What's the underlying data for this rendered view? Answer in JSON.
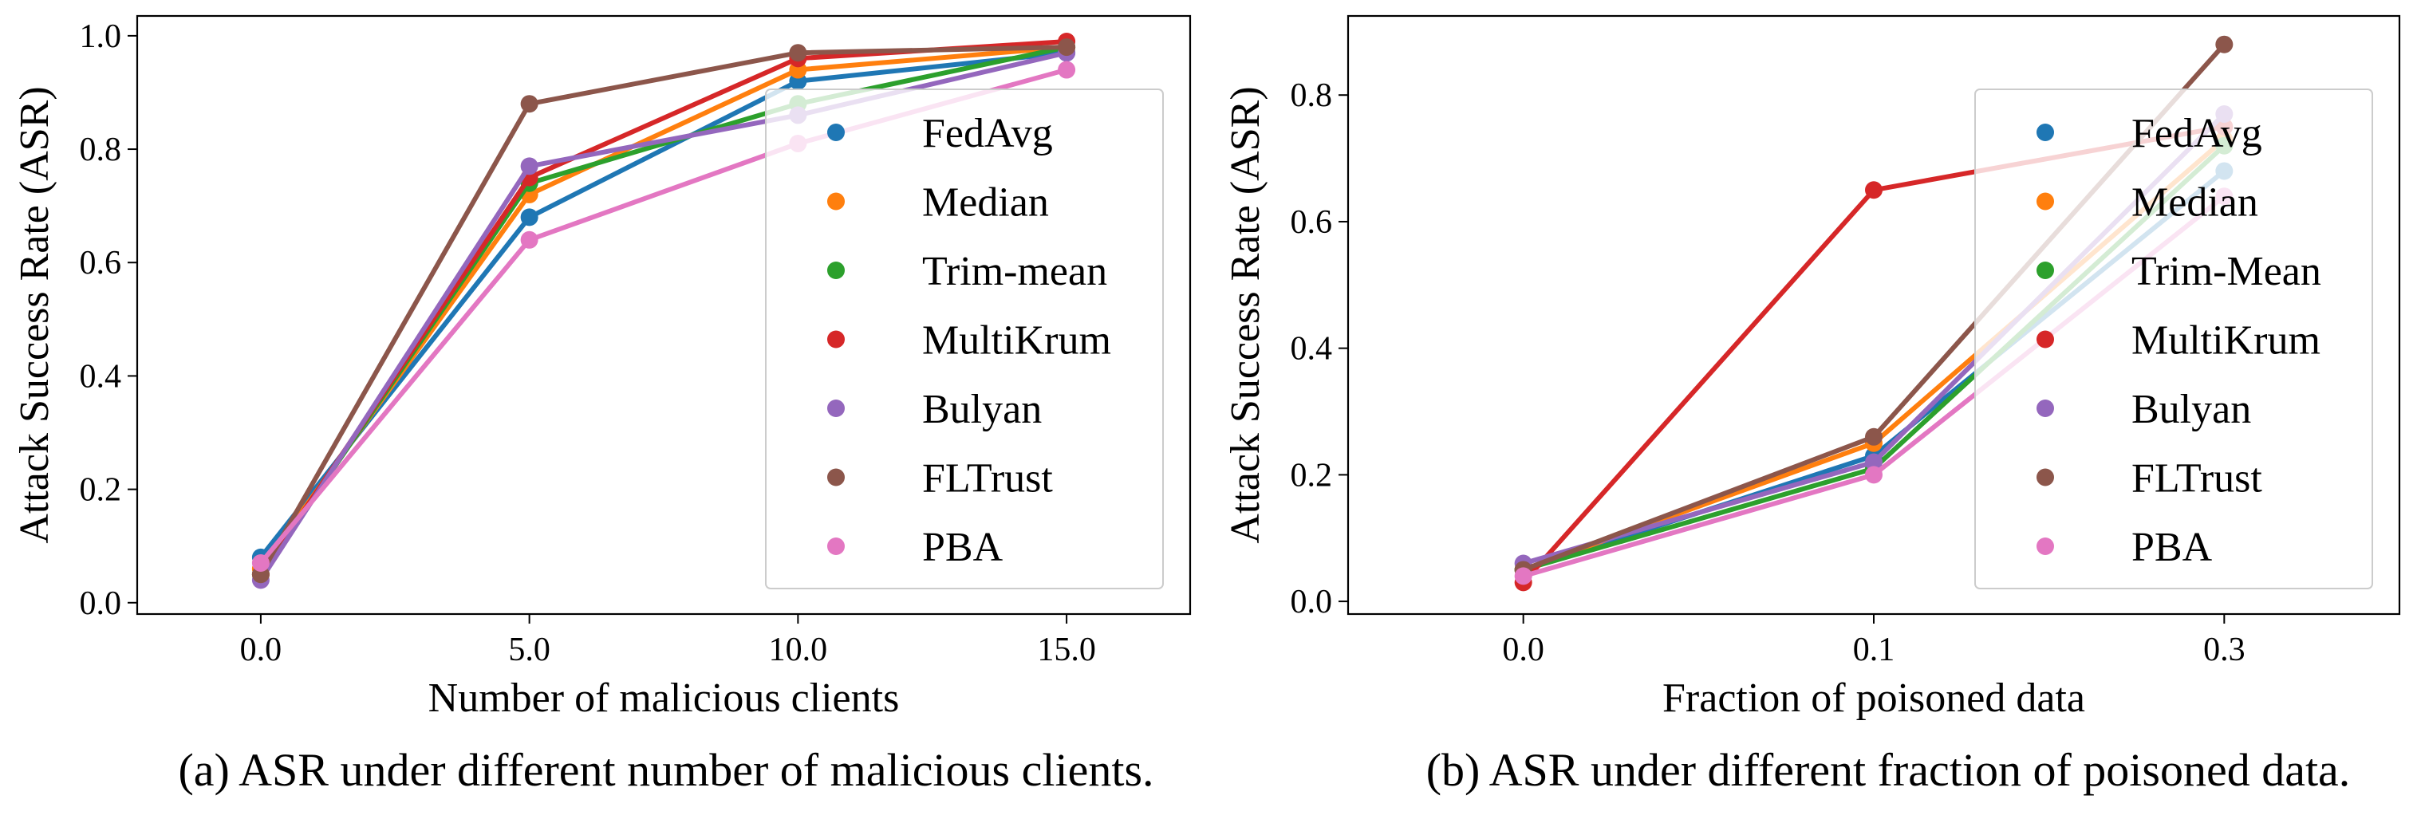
{
  "chart_data": [
    {
      "type": "line",
      "caption": "(a) ASR under different number of malicious clients.",
      "xlabel": "Number of malicious clients",
      "ylabel": "Attack Success Rate (ASR)",
      "x": [
        0.0,
        5.0,
        10.0,
        15.0
      ],
      "x_tick_labels": [
        "0.0",
        "5.0",
        "10.0",
        "15.0"
      ],
      "xlim": [
        -2.3,
        17.3
      ],
      "ylim": [
        -0.02,
        1.035
      ],
      "y_ticks": [
        0.0,
        0.2,
        0.4,
        0.6,
        0.8,
        1.0
      ],
      "y_tick_labels": [
        "0.0",
        "0.2",
        "0.4",
        "0.6",
        "0.8",
        "1.0"
      ],
      "grid": false,
      "legend_position": "right",
      "series": [
        {
          "name": "FedAvg",
          "color": "#1f77b4",
          "values": [
            0.08,
            0.68,
            0.92,
            0.97
          ]
        },
        {
          "name": "Median",
          "color": "#ff7f0e",
          "values": [
            0.06,
            0.72,
            0.94,
            0.98
          ]
        },
        {
          "name": "Trim-mean",
          "color": "#2ca02c",
          "values": [
            0.05,
            0.74,
            0.88,
            0.98
          ]
        },
        {
          "name": "MultiKrum",
          "color": "#d62728",
          "values": [
            0.05,
            0.75,
            0.96,
            0.99
          ]
        },
        {
          "name": "Bulyan",
          "color": "#9467bd",
          "values": [
            0.04,
            0.77,
            0.86,
            0.97
          ]
        },
        {
          "name": "FLTrust",
          "color": "#8c564b",
          "values": [
            0.05,
            0.88,
            0.97,
            0.98
          ]
        },
        {
          "name": "PBA",
          "color": "#e377c2",
          "values": [
            0.07,
            0.64,
            0.81,
            0.94
          ]
        }
      ]
    },
    {
      "type": "line",
      "caption": "(b) ASR under different fraction of poisoned data.",
      "xlabel": "Fraction of poisoned data",
      "ylabel": "Attack Success Rate (ASR)",
      "x": [
        "0.0",
        "0.1",
        "0.3"
      ],
      "x_tick_labels": [
        "0.0",
        "0.1",
        "0.3"
      ],
      "xlim": [
        -0.5,
        2.5
      ],
      "ylim": [
        -0.02,
        0.925
      ],
      "y_ticks": [
        0.0,
        0.2,
        0.4,
        0.6,
        0.8
      ],
      "y_tick_labels": [
        "0.0",
        "0.2",
        "0.4",
        "0.6",
        "0.8"
      ],
      "grid": false,
      "legend_position": "right",
      "series": [
        {
          "name": "FedAvg",
          "color": "#1f77b4",
          "values": [
            0.05,
            0.23,
            0.68
          ]
        },
        {
          "name": "Median",
          "color": "#ff7f0e",
          "values": [
            0.05,
            0.25,
            0.73
          ]
        },
        {
          "name": "Trim-Mean",
          "color": "#2ca02c",
          "values": [
            0.05,
            0.21,
            0.72
          ]
        },
        {
          "name": "MultiKrum",
          "color": "#d62728",
          "values": [
            0.03,
            0.65,
            0.75
          ]
        },
        {
          "name": "Bulyan",
          "color": "#9467bd",
          "values": [
            0.06,
            0.22,
            0.77
          ]
        },
        {
          "name": "FLTrust",
          "color": "#8c564b",
          "values": [
            0.05,
            0.26,
            0.88
          ]
        },
        {
          "name": "PBA",
          "color": "#e377c2",
          "values": [
            0.04,
            0.2,
            0.64
          ]
        }
      ]
    }
  ]
}
